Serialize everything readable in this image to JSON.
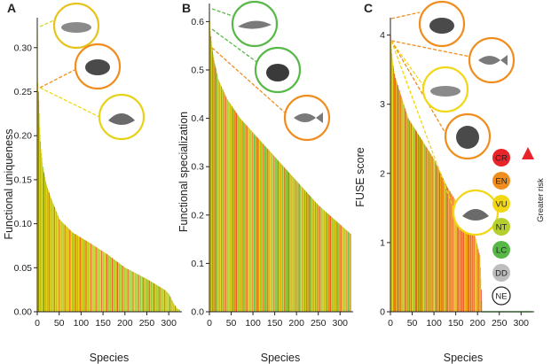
{
  "status_colors": {
    "CR": "#e8232a",
    "EN": "#f08d1f",
    "VU": "#f1d715",
    "NT": "#b5cf2f",
    "LC": "#57b847",
    "DD": "#bdbdbd",
    "NE": "#ffffff"
  },
  "panel_colors": {
    "A": [
      "#f1d715",
      "#f1d715",
      "#b5cf2f",
      "#57b847",
      "#f1d715",
      "#b5cf2f",
      "#f08d1f",
      "#f1d715",
      "#57b847",
      "#b5cf2f",
      "#f1d715",
      "#57b847",
      "#f1d715",
      "#b5cf2f",
      "#e8232a",
      "#f1d715"
    ],
    "B": [
      "#b5cf2f",
      "#f1d715",
      "#f08d1f",
      "#57b847",
      "#f1d715",
      "#b5cf2f",
      "#e8232a",
      "#f1d715",
      "#57b847",
      "#f08d1f",
      "#b5cf2f",
      "#f1d715",
      "#57b847",
      "#b5cf2f",
      "#f1d715",
      "#f08d1f"
    ],
    "C": [
      "#e8232a",
      "#f08d1f",
      "#e8232a",
      "#f08d1f",
      "#f1d715",
      "#e8232a",
      "#f08d1f",
      "#f1d715",
      "#f08d1f",
      "#b5cf2f",
      "#f1d715",
      "#f08d1f",
      "#57b847",
      "#f1d715",
      "#b5cf2f",
      "#f1d715"
    ]
  },
  "legend": {
    "items": [
      "CR",
      "EN",
      "VU",
      "NT",
      "LC",
      "DD",
      "NE"
    ],
    "arrow_label": "Greater risk"
  },
  "chart_data": [
    {
      "panel": "A",
      "type": "bar",
      "n_species": 325,
      "xlabel": "Species",
      "ylabel": "Functional uniqueness",
      "xlim": [
        0,
        330
      ],
      "ylim": [
        0,
        0.33
      ],
      "xticks": [
        0,
        50,
        100,
        150,
        200,
        250,
        300
      ],
      "yticks": [
        0.0,
        0.05,
        0.1,
        0.15,
        0.2,
        0.25,
        0.3
      ],
      "ytick_labels": [
        "0.00",
        "0.05",
        "0.10",
        "0.15",
        "0.20",
        "0.25",
        "0.30"
      ],
      "profile_x": [
        0,
        1,
        3,
        5,
        8,
        12,
        20,
        30,
        50,
        80,
        120,
        160,
        200,
        250,
        290,
        300,
        310,
        318,
        325
      ],
      "profile_y": [
        0.32,
        0.26,
        0.24,
        0.21,
        0.185,
        0.165,
        0.145,
        0.13,
        0.105,
        0.09,
        0.078,
        0.065,
        0.05,
        0.037,
        0.025,
        0.02,
        0.01,
        0.004,
        0.002
      ],
      "icons": [
        "Manatee",
        "Sea turtle",
        "Giant clam"
      ]
    },
    {
      "panel": "B",
      "type": "bar",
      "n_species": 325,
      "xlabel": "Species",
      "ylabel": "Functional specialization",
      "xlim": [
        0,
        330
      ],
      "ylim": [
        0,
        0.63
      ],
      "xticks": [
        0,
        50,
        100,
        150,
        200,
        250,
        300
      ],
      "yticks": [
        0.0,
        0.1,
        0.2,
        0.3,
        0.4,
        0.5,
        0.6
      ],
      "ytick_labels": [
        "0.0",
        "0.1",
        "0.2",
        "0.3",
        "0.4",
        "0.5",
        "0.6"
      ],
      "profile_x": [
        0,
        2,
        5,
        10,
        20,
        40,
        70,
        100,
        150,
        200,
        250,
        300,
        325
      ],
      "profile_y": [
        0.62,
        0.58,
        0.55,
        0.52,
        0.48,
        0.44,
        0.4,
        0.37,
        0.32,
        0.27,
        0.22,
        0.18,
        0.16
      ],
      "icons": [
        "Dolphin",
        "Seal",
        "Fish"
      ]
    },
    {
      "panel": "C",
      "type": "bar",
      "n_species": 325,
      "xlabel": "Species",
      "ylabel": "FUSE score",
      "xlim": [
        0,
        330
      ],
      "ylim": [
        0,
        4.2
      ],
      "xticks": [
        0,
        50,
        100,
        150,
        200,
        250,
        300
      ],
      "yticks": [
        0,
        1,
        2,
        3,
        4
      ],
      "ytick_labels": [
        "0",
        "1",
        "2",
        "3",
        "4"
      ],
      "profile_x": [
        0,
        2,
        5,
        10,
        20,
        40,
        70,
        100,
        130,
        160,
        190,
        205,
        210,
        325
      ],
      "profile_y": [
        4.0,
        3.8,
        3.6,
        3.4,
        3.2,
        2.8,
        2.5,
        2.2,
        1.8,
        1.5,
        1.2,
        0.8,
        0.0,
        0.0
      ],
      "icons": [
        "Sea turtle",
        "Fish",
        "Manatee",
        "Sea otter",
        "Giant clam"
      ]
    }
  ]
}
